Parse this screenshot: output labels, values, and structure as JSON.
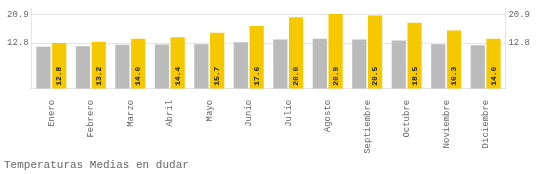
{
  "chart_data": {
    "type": "bar",
    "title": "Temperaturas Medias en dudar",
    "categories": [
      "Enero",
      "Febrero",
      "Marzo",
      "Abril",
      "Mayo",
      "Junio",
      "Julio",
      "Agosto",
      "Septiembre",
      "Octubre",
      "Noviembre",
      "Diciembre"
    ],
    "series": [
      {
        "color": "#BBBBBB",
        "values": [
          11.8,
          11.9,
          12.3,
          12.4,
          12.5,
          13.0,
          13.8,
          14.0,
          13.8,
          13.5,
          12.5,
          12.2
        ]
      },
      {
        "color": "#F5C800",
        "values": [
          12.8,
          13.2,
          14.0,
          14.4,
          15.7,
          17.6,
          20.0,
          20.9,
          20.5,
          18.5,
          16.3,
          14.0
        ],
        "data_labels": true,
        "value_labels": [
          "12.8",
          "13.2",
          "14.0",
          "14.4",
          "15.7",
          "17.6",
          "20.0",
          "20.9",
          "20.5",
          "18.5",
          "16.3",
          "14.0"
        ]
      }
    ],
    "ylim": [
      0.0,
      22.5
    ],
    "yticks": [
      12.8,
      20.9
    ],
    "y2lim": [
      0.0,
      22.5
    ],
    "y2ticks": [
      12.8,
      20.9
    ],
    "grid": true
  }
}
